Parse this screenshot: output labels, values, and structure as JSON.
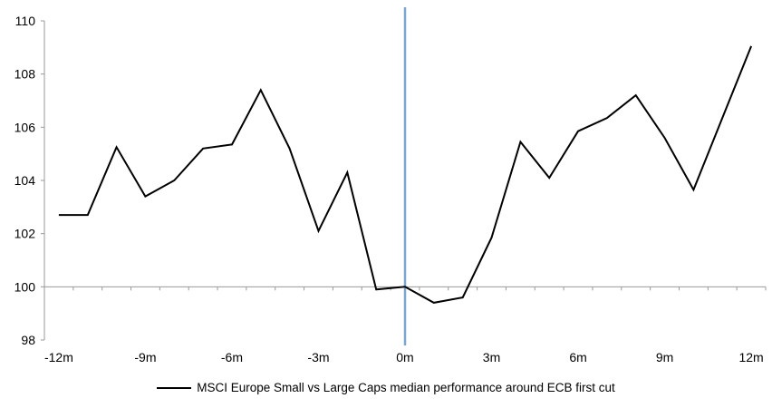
{
  "chart_data": {
    "type": "line",
    "title": "",
    "xlabel": "",
    "ylabel": "",
    "x": [
      -12,
      -11,
      -10,
      -9,
      -8,
      -7,
      -6,
      -5,
      -4,
      -3,
      -2,
      -1,
      0,
      1,
      2,
      3,
      4,
      5,
      6,
      7,
      8,
      9,
      10,
      11,
      12
    ],
    "series": [
      {
        "name": "MSCI Europe Small vs Large Caps median performance around ECB first cut",
        "color": "#000000",
        "values": [
          102.7,
          102.7,
          105.25,
          103.4,
          104.0,
          105.2,
          105.35,
          107.4,
          105.2,
          102.1,
          104.3,
          99.9,
          100.0,
          99.4,
          99.6,
          101.85,
          105.45,
          104.1,
          105.85,
          106.35,
          107.2,
          105.6,
          103.65,
          106.35,
          109.05
        ]
      }
    ],
    "ylim": [
      98,
      110
    ],
    "ytick_step": 2,
    "yticks": [
      98,
      100,
      102,
      104,
      106,
      108,
      110
    ],
    "xticks": [
      {
        "pos": -12,
        "label": "-12m"
      },
      {
        "pos": -9,
        "label": "-9m"
      },
      {
        "pos": -6,
        "label": "-6m"
      },
      {
        "pos": -3,
        "label": "-3m"
      },
      {
        "pos": 0,
        "label": "0m"
      },
      {
        "pos": 3,
        "label": "3m"
      },
      {
        "pos": 6,
        "label": "6m"
      },
      {
        "pos": 9,
        "label": "9m"
      },
      {
        "pos": 12,
        "label": "12m"
      }
    ],
    "x_axis_at": 100,
    "grid": "off",
    "event_line": {
      "x": 0,
      "color": "#7ba6cf"
    },
    "axis_color": "#9a9a9a",
    "legend": {
      "position": "bottom-center",
      "label": "MSCI Europe Small vs Large Caps median performance around ECB first cut"
    }
  }
}
